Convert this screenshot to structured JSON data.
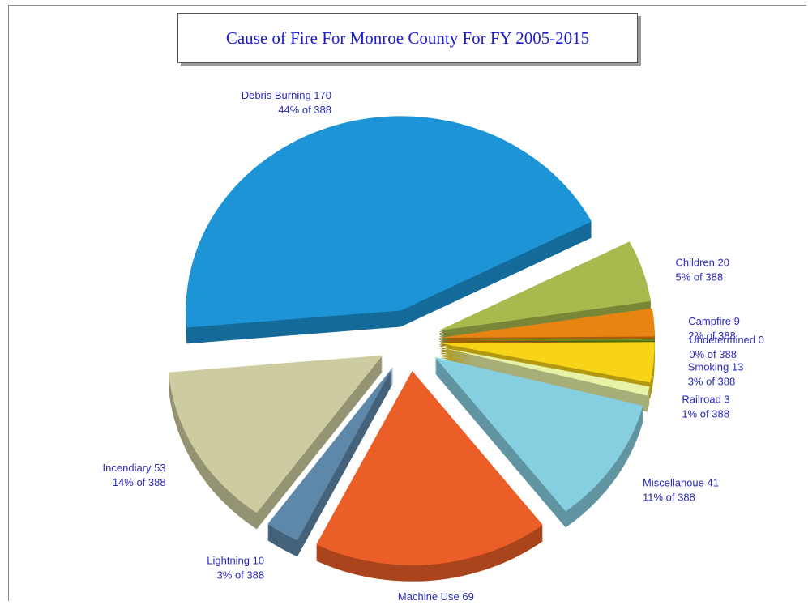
{
  "chart_data": {
    "type": "pie",
    "title": "Cause of Fire For Monroe County For FY 2005-2015",
    "total": 388,
    "slices": [
      {
        "name": "Debris Burning",
        "value": 170,
        "label": "Debris Burning 170",
        "pct_label": "44% of 388",
        "color": "#1c94d6"
      },
      {
        "name": "Children",
        "value": 20,
        "label": "Children 20",
        "pct_label": "5% of 388",
        "color": "#a8ba4e"
      },
      {
        "name": "Campfire",
        "value": 9,
        "label": "Campfire 9",
        "pct_label": "2% of 388",
        "color": "#e88412"
      },
      {
        "name": "Undetermined",
        "value": 0,
        "label": "Undetermined 0",
        "pct_label": "0% of 388",
        "color": "#6f8f1c"
      },
      {
        "name": "Smoking",
        "value": 13,
        "label": "Smoking 13",
        "pct_label": "3% of 388",
        "color": "#f7d417"
      },
      {
        "name": "Railroad",
        "value": 3,
        "label": "Railroad 3",
        "pct_label": "1% of 388",
        "color": "#e8f2a6"
      },
      {
        "name": "Miscellanoue",
        "value": 41,
        "label": "Miscellanoue 41",
        "pct_label": "11% of 388",
        "color": "#86cfe0"
      },
      {
        "name": "Machine Use",
        "value": 69,
        "label": "Machine Use 69",
        "pct_label": "18% of 388",
        "color": "#ec5e28"
      },
      {
        "name": "Lightning",
        "value": 10,
        "label": "Lightning 10",
        "pct_label": "3% of 388",
        "color": "#5e88aa"
      },
      {
        "name": "Incendiary",
        "value": 53,
        "label": "Incendiary 53",
        "pct_label": "14% of 388",
        "color": "#cdcca0"
      }
    ]
  }
}
